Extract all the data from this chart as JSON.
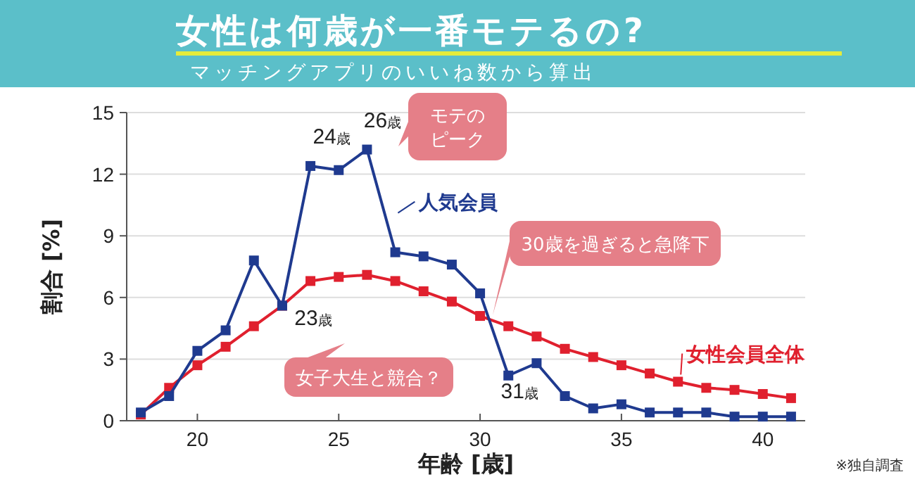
{
  "chart_data": {
    "type": "line",
    "title": "女性は何歳が一番モテるの?",
    "subtitle": "マッチングアプリのいいね数から算出",
    "xlabel": "年齢 [歳]",
    "ylabel": "割合 [%]",
    "x": [
      18,
      19,
      20,
      21,
      22,
      23,
      24,
      25,
      26,
      27,
      28,
      29,
      30,
      31,
      32,
      33,
      34,
      35,
      36,
      37,
      38,
      39,
      40,
      41
    ],
    "series": [
      {
        "name": "人気会員",
        "color": "#1f3a8f",
        "values": [
          0.4,
          1.2,
          3.4,
          4.4,
          7.8,
          5.6,
          12.4,
          12.2,
          13.2,
          8.2,
          8.0,
          7.6,
          6.2,
          2.2,
          2.8,
          1.2,
          0.6,
          0.8,
          0.4,
          0.4,
          0.4,
          0.2,
          0.2,
          0.2
        ]
      },
      {
        "name": "女性会員全体",
        "color": "#e0202e",
        "values": [
          0.3,
          1.6,
          2.7,
          3.6,
          4.6,
          5.6,
          6.8,
          7.0,
          7.1,
          6.8,
          6.3,
          5.8,
          5.1,
          4.6,
          4.1,
          3.5,
          3.1,
          2.7,
          2.3,
          1.9,
          1.6,
          1.5,
          1.3,
          1.1
        ]
      }
    ],
    "xlim": [
      17.5,
      41.5
    ],
    "ylim": [
      0,
      15
    ],
    "xticks": [
      20,
      25,
      30,
      35,
      40
    ],
    "yticks": [
      0,
      3,
      6,
      9,
      12,
      15
    ],
    "grid": "y",
    "legend": "right",
    "marker": "square",
    "line_style": "solid",
    "annotations": [
      {
        "text": "24歳",
        "x": 24,
        "y": 12.4
      },
      {
        "text": "26歳",
        "x": 26,
        "y": 13.2
      },
      {
        "text": "23歳",
        "x": 23,
        "y": 5.6
      },
      {
        "text": "31歳",
        "x": 31,
        "y": 2.2
      },
      "モテのピーク",
      "30歳を過ぎると急降下",
      "女子大生と競合？",
      "※独自調査"
    ]
  }
}
